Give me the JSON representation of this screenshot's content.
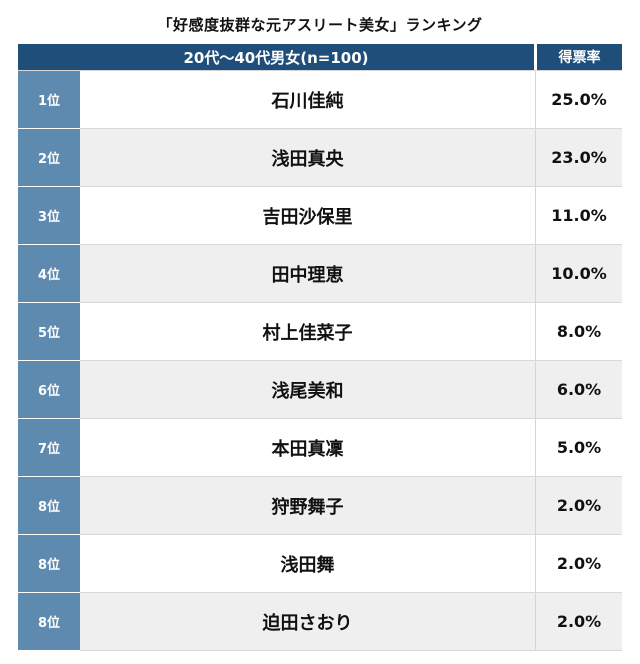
{
  "title": "「好感度抜群な元アスリート美女」ランキング",
  "header": {
    "group_label": "20代〜40代男女(n=100)",
    "rate_label": "得票率"
  },
  "colors": {
    "header_bg": "#1f4e7a",
    "rank_bg": "#5f8ab0",
    "alt_row_bg": "#efefef"
  },
  "rows": [
    {
      "rank": "1位",
      "name": "石川佳純",
      "rate": "25.0%"
    },
    {
      "rank": "2位",
      "name": "浅田真央",
      "rate": "23.0%"
    },
    {
      "rank": "3位",
      "name": "吉田沙保里",
      "rate": "11.0%"
    },
    {
      "rank": "4位",
      "name": "田中理恵",
      "rate": "10.0%"
    },
    {
      "rank": "5位",
      "name": "村上佳菜子",
      "rate": "8.0%"
    },
    {
      "rank": "6位",
      "name": "浅尾美和",
      "rate": "6.0%"
    },
    {
      "rank": "7位",
      "name": "本田真凜",
      "rate": "5.0%"
    },
    {
      "rank": "8位",
      "name": "狩野舞子",
      "rate": "2.0%"
    },
    {
      "rank": "8位",
      "name": "浅田舞",
      "rate": "2.0%"
    },
    {
      "rank": "8位",
      "name": "迫田さおり",
      "rate": "2.0%"
    }
  ]
}
